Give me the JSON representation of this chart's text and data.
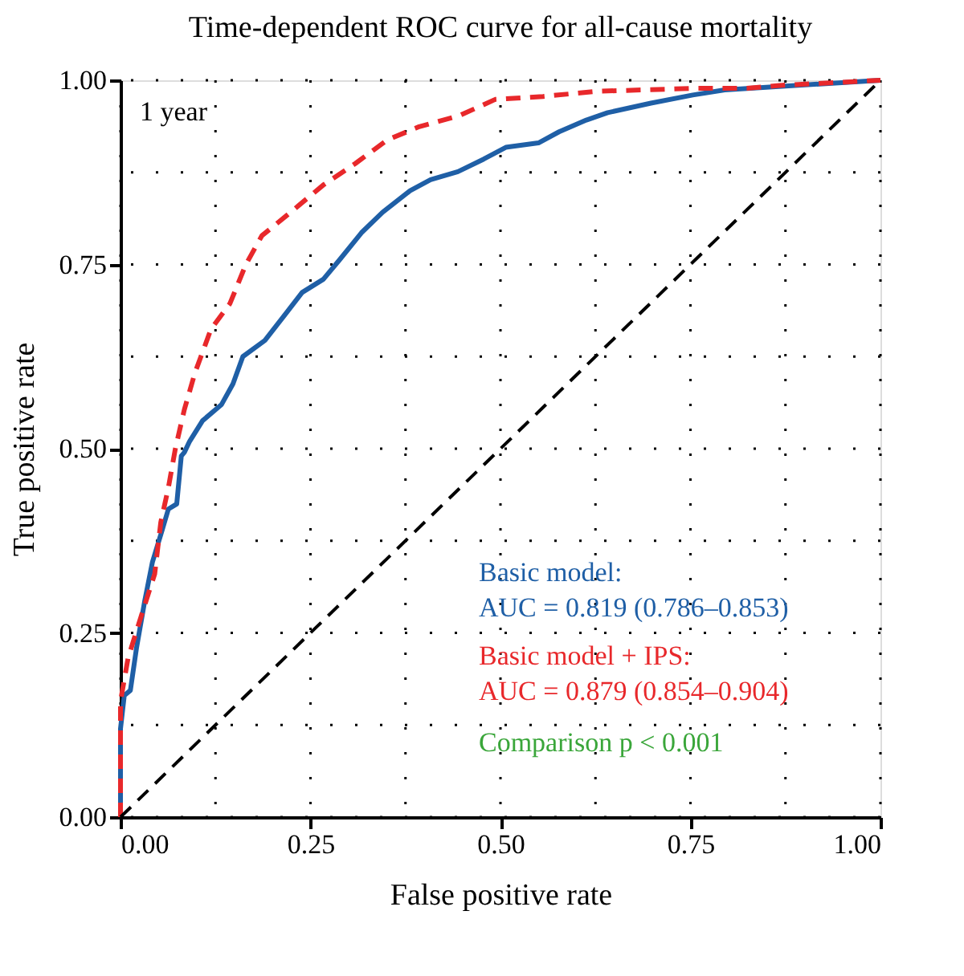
{
  "chart_data": {
    "type": "line",
    "title": "Time-dependent ROC curve for all-cause mortality",
    "xlabel": "False positive rate",
    "ylabel": "True positive rate",
    "xlim": [
      0,
      1
    ],
    "ylim": [
      0,
      1
    ],
    "xticks": [
      {
        "value": 0,
        "label": "0.00"
      },
      {
        "value": 0.125,
        "label": null
      },
      {
        "value": 0.25,
        "label": "0.25"
      },
      {
        "value": 0.375,
        "label": null
      },
      {
        "value": 0.5,
        "label": "0.50"
      },
      {
        "value": 0.625,
        "label": null
      },
      {
        "value": 0.75,
        "label": "0.75"
      },
      {
        "value": 0.875,
        "label": null
      },
      {
        "value": 1,
        "label": "1.00"
      }
    ],
    "yticks": [
      {
        "value": 0,
        "label": "0.00"
      },
      {
        "value": 0.125,
        "label": null
      },
      {
        "value": 0.25,
        "label": "0.25"
      },
      {
        "value": 0.375,
        "label": null
      },
      {
        "value": 0.5,
        "label": "0.50"
      },
      {
        "value": 0.625,
        "label": null
      },
      {
        "value": 0.75,
        "label": "0.75"
      },
      {
        "value": 0.875,
        "label": null
      },
      {
        "value": 1,
        "label": "1.00"
      }
    ],
    "grid": true,
    "marker": "none",
    "annotations": [
      "1 year",
      "Comparison p < 0.001"
    ],
    "series": [
      {
        "name": "Basic model:\nAUC = 0.819 (0.786–0.853)",
        "color": "#1f5fa6",
        "line_style": "solid",
        "x": [
          0,
          0,
          0.005,
          0.013,
          0.021,
          0.032,
          0.042,
          0.055,
          0.063,
          0.074,
          0.08,
          0.084,
          0.091,
          0.108,
          0.133,
          0.148,
          0.161,
          0.19,
          0.218,
          0.239,
          0.267,
          0.288,
          0.317,
          0.345,
          0.381,
          0.408,
          0.444,
          0.478,
          0.507,
          0.55,
          0.577,
          0.613,
          0.641,
          0.698,
          0.753,
          0.795,
          0.858,
          1
        ],
        "values": [
          0,
          0.12,
          0.165,
          0.172,
          0.229,
          0.294,
          0.346,
          0.39,
          0.418,
          0.425,
          0.49,
          0.495,
          0.51,
          0.538,
          0.56,
          0.588,
          0.625,
          0.647,
          0.684,
          0.712,
          0.73,
          0.756,
          0.793,
          0.821,
          0.85,
          0.865,
          0.876,
          0.893,
          0.909,
          0.915,
          0.93,
          0.946,
          0.956,
          0.969,
          0.98,
          0.987,
          0.991,
          1
        ]
      },
      {
        "name": "Basic model + IPS:\nAUC = 0.879 (0.854–0.904)",
        "color": "#e8282b",
        "line_style": "dashed",
        "x": [
          0,
          0,
          0.01,
          0.027,
          0.045,
          0.053,
          0.063,
          0.072,
          0.084,
          0.098,
          0.119,
          0.144,
          0.165,
          0.186,
          0.224,
          0.267,
          0.309,
          0.351,
          0.393,
          0.446,
          0.493,
          0.556,
          0.626,
          0.753,
          0.824,
          0.867,
          1
        ],
        "values": [
          0,
          0.157,
          0.216,
          0.272,
          0.33,
          0.4,
          0.447,
          0.499,
          0.553,
          0.603,
          0.662,
          0.697,
          0.75,
          0.789,
          0.821,
          0.858,
          0.887,
          0.919,
          0.937,
          0.952,
          0.974,
          0.978,
          0.985,
          0.989,
          0.989,
          0.993,
          1
        ]
      },
      {
        "color": "#000000",
        "line_style": "dashed",
        "x": [
          0,
          1
        ],
        "values": [
          0,
          1
        ]
      }
    ]
  }
}
